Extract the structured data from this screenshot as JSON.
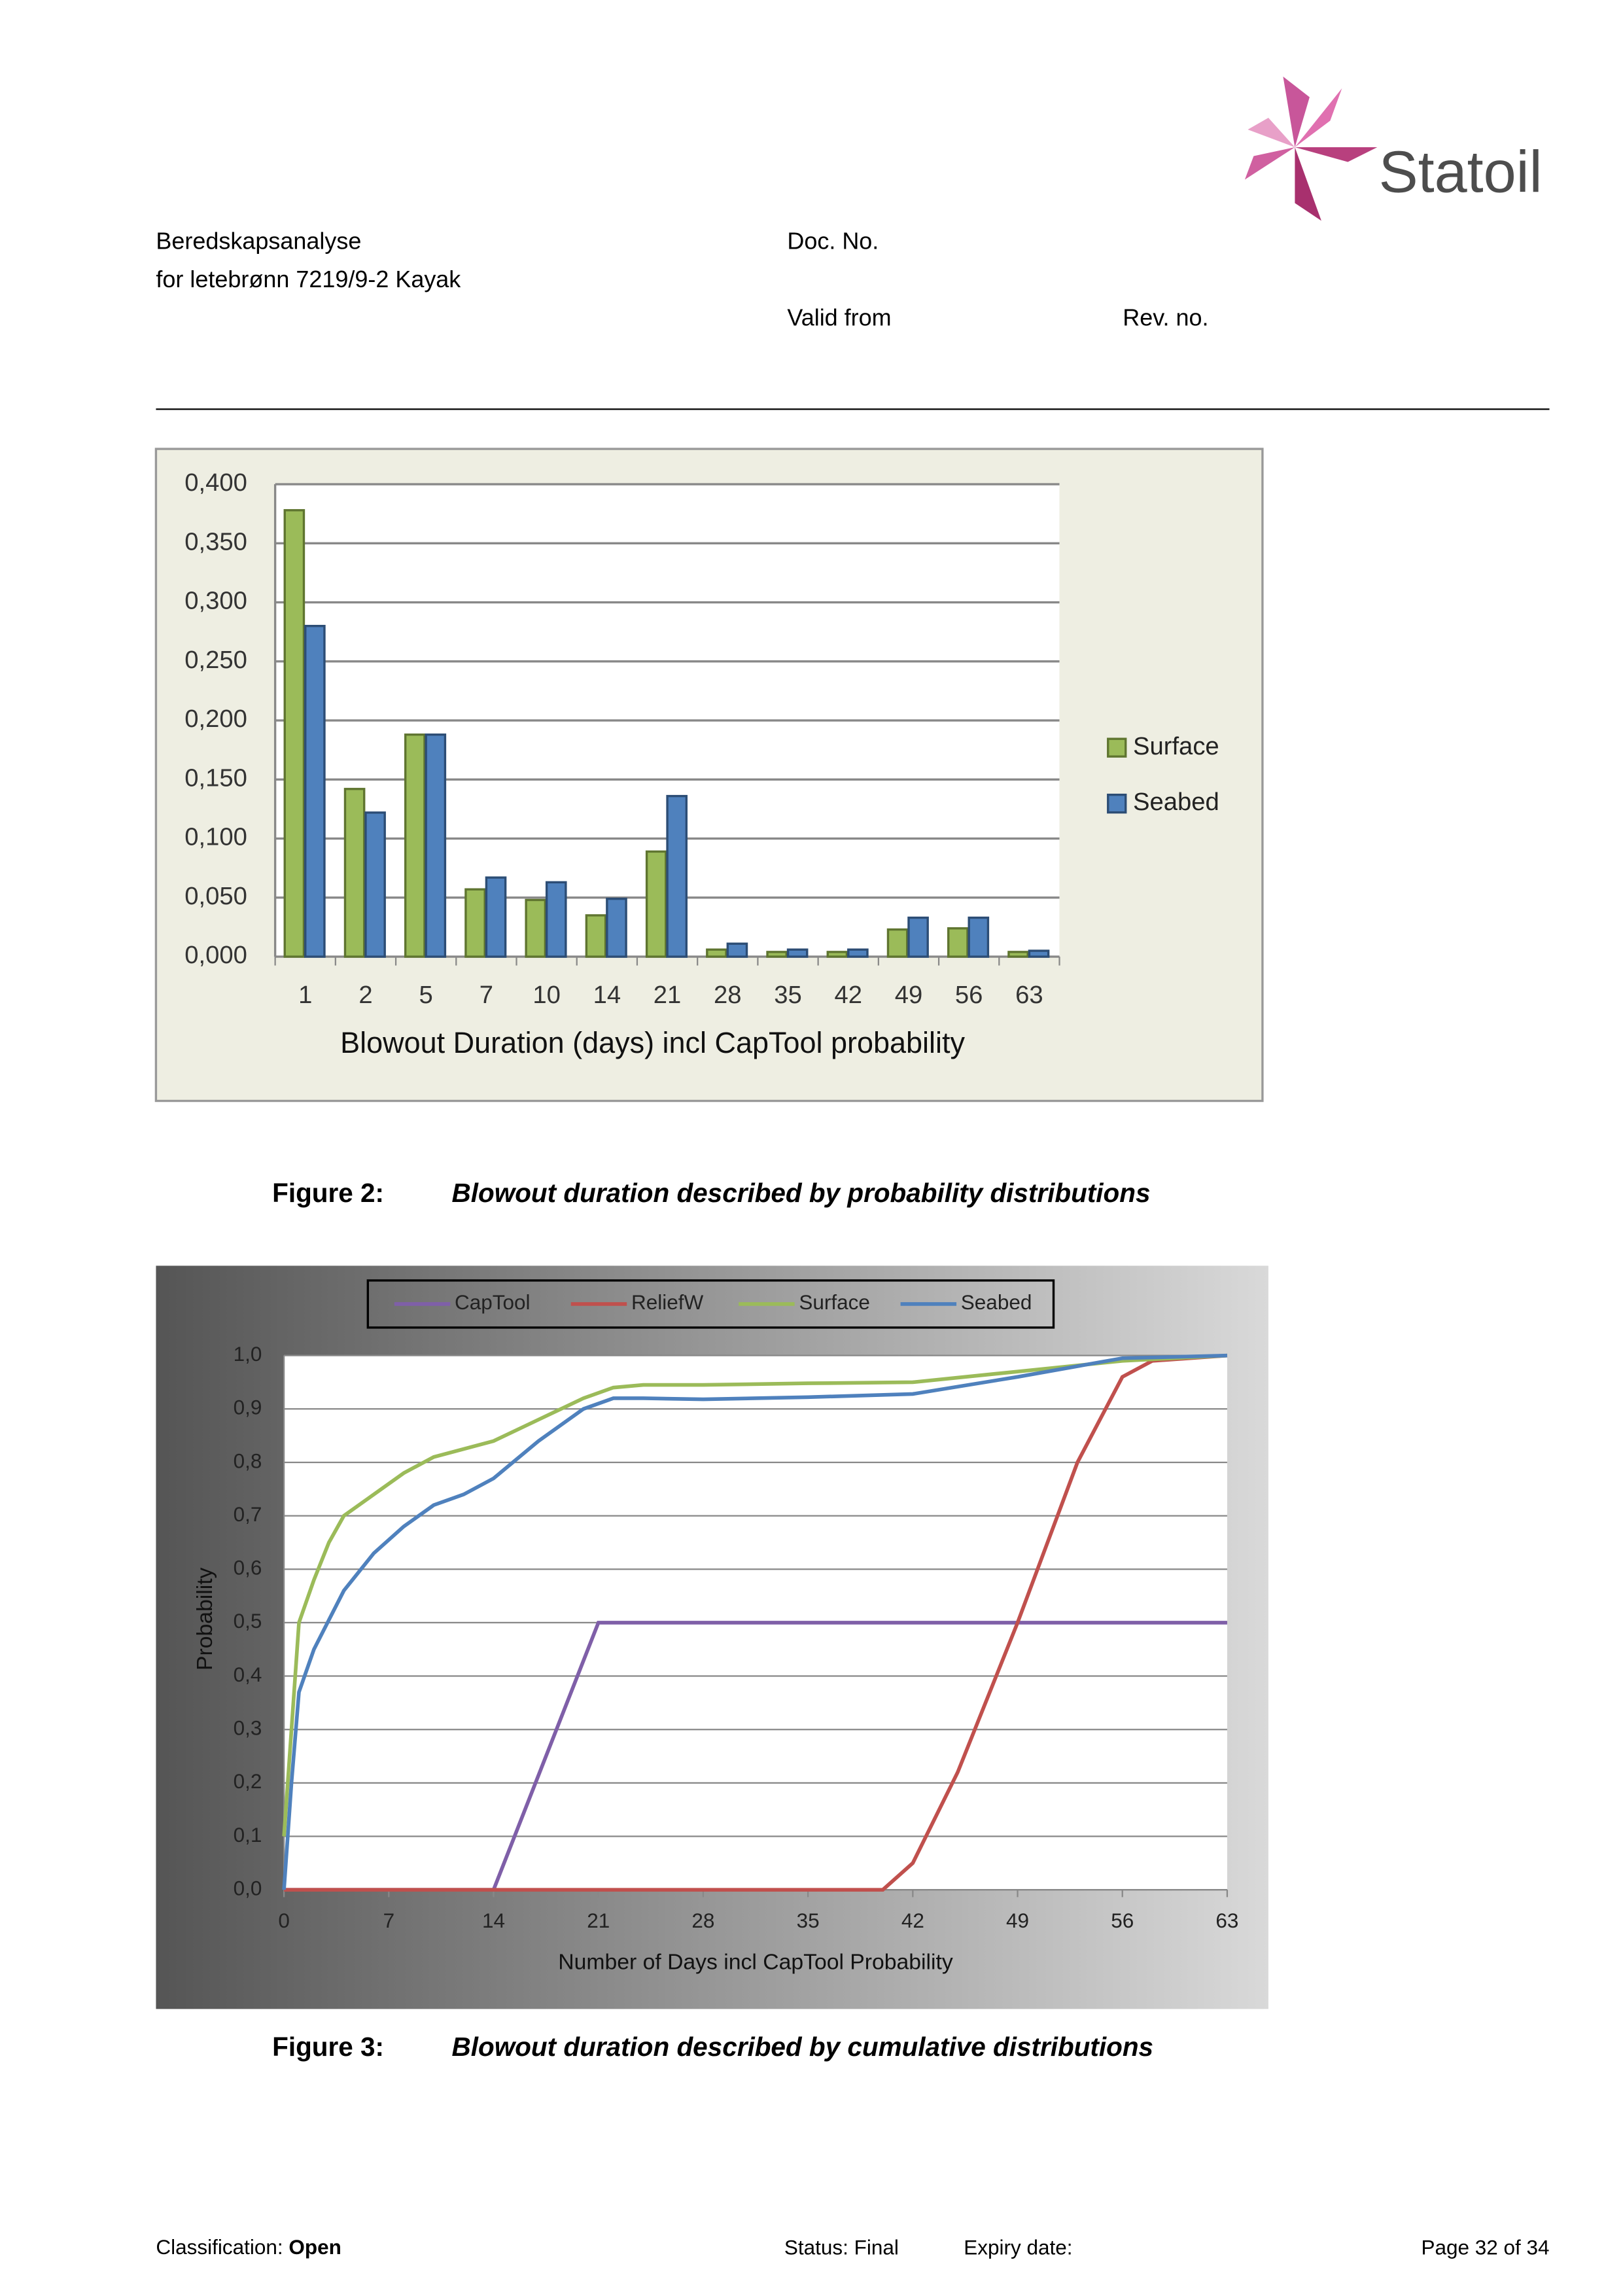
{
  "header": {
    "title": "Beredskapsanalyse",
    "subtitle": "for letebrønn 7219/9-2 Kayak",
    "doc_no_label": "Doc. No.",
    "valid_from_label": "Valid from",
    "rev_no_label": "Rev. no.",
    "logo": "Statoil"
  },
  "chart_data": [
    {
      "type": "bar",
      "x_label": "Blowout Duration (days) incl CapTool probability",
      "categories": [
        "1",
        "2",
        "5",
        "7",
        "10",
        "14",
        "21",
        "28",
        "35",
        "42",
        "49",
        "56",
        "63"
      ],
      "series": [
        {
          "name": "Surface",
          "color": "#9bbb59",
          "values": [
            0.378,
            0.142,
            0.188,
            0.057,
            0.048,
            0.035,
            0.089,
            0.006,
            0.004,
            0.004,
            0.023,
            0.024,
            0.004
          ]
        },
        {
          "name": "Seabed",
          "color": "#4f81bd",
          "values": [
            0.28,
            0.122,
            0.188,
            0.067,
            0.063,
            0.049,
            0.136,
            0.011,
            0.006,
            0.006,
            0.033,
            0.033,
            0.005
          ]
        }
      ],
      "ylim": [
        0,
        0.4
      ],
      "yticks": [
        {
          "value": 0,
          "label": "0,000"
        },
        {
          "value": 0.05,
          "label": "0,050"
        },
        {
          "value": 0.1,
          "label": "0,100"
        },
        {
          "value": 0.15,
          "label": "0,150"
        },
        {
          "value": 0.2,
          "label": "0,200"
        },
        {
          "value": 0.25,
          "label": "0,250"
        },
        {
          "value": 0.3,
          "label": "0,300"
        },
        {
          "value": 0.35,
          "label": "0,350"
        },
        {
          "value": 0.4,
          "label": "0,400"
        }
      ],
      "grid": true,
      "legend": "right"
    },
    {
      "type": "line",
      "x_label": "Number of Days incl CapTool Probability",
      "y_label": "Probability",
      "series": [
        {
          "name": "CapTool",
          "color": "#7f5fa8",
          "x": [
            0,
            14,
            21,
            63
          ],
          "values": [
            0,
            0,
            0.5,
            0.5
          ]
        },
        {
          "name": "ReliefW",
          "color": "#c0504d",
          "x": [
            0,
            28,
            35,
            40,
            42,
            45,
            49,
            53,
            56,
            58,
            63
          ],
          "values": [
            0,
            0,
            0,
            0,
            0.05,
            0.22,
            0.5,
            0.8,
            0.96,
            0.99,
            1.0
          ]
        },
        {
          "name": "Surface",
          "color": "#9bbb59",
          "x": [
            0,
            0.5,
            1,
            2,
            3,
            4,
            6,
            8,
            10,
            14,
            17,
            20,
            22,
            24,
            28,
            35,
            42,
            49,
            56,
            63
          ],
          "values": [
            0.1,
            0.3,
            0.5,
            0.58,
            0.65,
            0.7,
            0.74,
            0.78,
            0.81,
            0.84,
            0.88,
            0.92,
            0.94,
            0.945,
            0.945,
            0.948,
            0.95,
            0.97,
            0.99,
            1.0
          ]
        },
        {
          "name": "Seabed",
          "color": "#4f81bd",
          "x": [
            0,
            0.5,
            1,
            2,
            4,
            6,
            8,
            10,
            12,
            14,
            17,
            20,
            22,
            24,
            28,
            35,
            42,
            49,
            56,
            63
          ],
          "values": [
            0,
            0.2,
            0.37,
            0.45,
            0.56,
            0.63,
            0.68,
            0.72,
            0.74,
            0.77,
            0.84,
            0.9,
            0.92,
            0.92,
            0.918,
            0.922,
            0.928,
            0.96,
            0.995,
            1.0
          ]
        }
      ],
      "xlim": [
        0,
        63
      ],
      "xticks": [
        0,
        7,
        14,
        21,
        28,
        35,
        42,
        49,
        56,
        63
      ],
      "ylim": [
        0,
        1
      ],
      "yticks": [
        {
          "value": 0,
          "label": "0,0"
        },
        {
          "value": 0.1,
          "label": "0,1"
        },
        {
          "value": 0.2,
          "label": "0,2"
        },
        {
          "value": 0.3,
          "label": "0,3"
        },
        {
          "value": 0.4,
          "label": "0,4"
        },
        {
          "value": 0.5,
          "label": "0,5"
        },
        {
          "value": 0.6,
          "label": "0,6"
        },
        {
          "value": 0.7,
          "label": "0,7"
        },
        {
          "value": 0.8,
          "label": "0,8"
        },
        {
          "value": 0.9,
          "label": "0,9"
        },
        {
          "value": 1,
          "label": "1,0"
        }
      ],
      "grid": true,
      "legend": "top"
    }
  ],
  "captions": [
    {
      "number": "Figure 2:",
      "text": "Blowout duration described by probability distributions"
    },
    {
      "number": "Figure 3:",
      "text": "Blowout duration described by cumulative distributions"
    }
  ],
  "footer": {
    "classification_label": "Classification:",
    "classification": "Open",
    "status": "Status: Final",
    "expiry": "Expiry date:",
    "page": "Page 32 of 34"
  }
}
